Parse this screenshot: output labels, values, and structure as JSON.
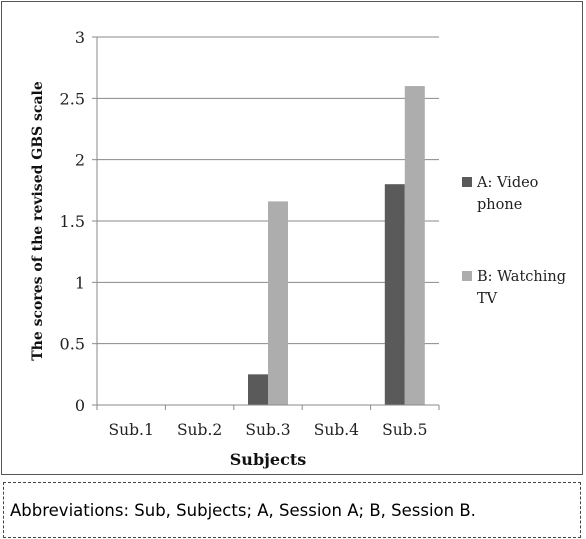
{
  "chart_data": {
    "type": "bar",
    "title": "",
    "xlabel": "Subjects",
    "ylabel": "The scores of the revised GBS scale",
    "ylim": [
      0,
      3
    ],
    "yticks": [
      "0",
      "0.5",
      "1",
      "1.5",
      "2",
      "2.5",
      "3"
    ],
    "categories": [
      "Sub.1",
      "Sub.2",
      "Sub.3",
      "Sub.4",
      "Sub.5"
    ],
    "series": [
      {
        "name": "A: Video phone",
        "legend_lines": [
          "A: Video",
          "phone"
        ],
        "color": "#5a5a5a",
        "values": [
          0,
          0,
          0.25,
          0,
          1.8
        ]
      },
      {
        "name": "B: Watching TV",
        "legend_lines": [
          "B: Watching",
          "TV"
        ],
        "color": "#adadad",
        "values": [
          0,
          0,
          1.66,
          0,
          2.6
        ]
      }
    ],
    "grid": true,
    "legend_position": "right"
  },
  "footnote": "Abbreviations: Sub, Subjects; A, Session A; B, Session B."
}
